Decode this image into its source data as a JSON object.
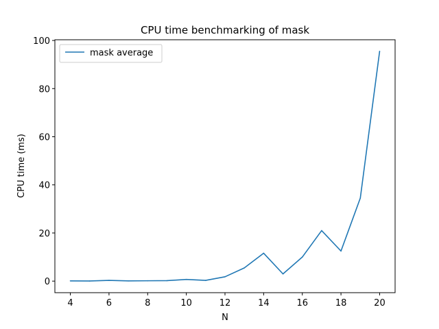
{
  "chart_data": {
    "type": "line",
    "title": "CPU time benchmarking of mask",
    "xlabel": "N",
    "ylabel": "CPU time (ms)",
    "x": [
      4,
      5,
      6,
      7,
      8,
      9,
      10,
      11,
      12,
      13,
      14,
      15,
      16,
      17,
      18,
      19,
      20
    ],
    "series": [
      {
        "name": "mask average",
        "values": [
          0.1,
          0.05,
          0.3,
          0.1,
          0.15,
          0.2,
          0.7,
          0.3,
          1.8,
          5.5,
          11.6,
          3.0,
          10.0,
          21.0,
          12.5,
          34.5,
          95.5
        ],
        "color": "#1f77b4"
      }
    ],
    "xlim": [
      3.2,
      20.8
    ],
    "ylim": [
      -4.8,
      100.3
    ],
    "xticks": [
      4,
      6,
      8,
      10,
      12,
      14,
      16,
      18,
      20
    ],
    "yticks": [
      0,
      20,
      40,
      60,
      80,
      100
    ],
    "grid": false,
    "legend_position": "top-left"
  }
}
